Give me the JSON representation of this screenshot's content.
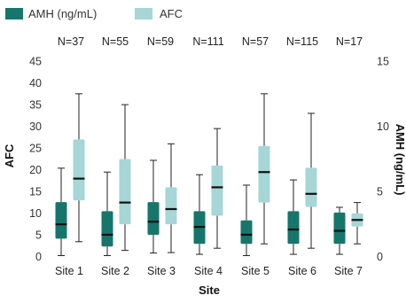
{
  "chart_data": {
    "type": "box",
    "xlabel": "Site",
    "ylabel_left": "AFC",
    "ylabel_right": "AMH (ng/mL)",
    "ylim_left": [
      0,
      45
    ],
    "yticks_left": [
      "0",
      "5",
      "10",
      "15",
      "20",
      "25",
      "30",
      "35",
      "40",
      "45"
    ],
    "ylim_right": [
      0,
      15
    ],
    "yticks_right": [
      "0",
      "5",
      "10",
      "15"
    ],
    "grid": false,
    "legend_position": "top-left",
    "categories": [
      "Site 1",
      "Site 2",
      "Site 3",
      "Site 4",
      "Site 5",
      "Site 6",
      "Site 7"
    ],
    "sample_sizes": [
      "N=37",
      "N=55",
      "N=59",
      "N=111",
      "N=57",
      "N=115",
      "N=17"
    ],
    "series": [
      {
        "name": "AMH (ng/mL)",
        "axis": "right",
        "color": "#17766b",
        "boxes": [
          {
            "min": 0.1,
            "q1": 1.4,
            "median": 2.5,
            "q3": 4.2,
            "max": 6.8
          },
          {
            "min": 0.1,
            "q1": 0.8,
            "median": 1.7,
            "q3": 3.5,
            "max": 6.5
          },
          {
            "min": 0.3,
            "q1": 1.7,
            "median": 2.7,
            "q3": 4.2,
            "max": 7.4
          },
          {
            "min": 0.2,
            "q1": 1.0,
            "median": 2.3,
            "q3": 3.5,
            "max": 6.3
          },
          {
            "min": 0.1,
            "q1": 1.0,
            "median": 1.7,
            "q3": 2.8,
            "max": 5.5
          },
          {
            "min": 0.2,
            "q1": 1.0,
            "median": 2.1,
            "q3": 3.5,
            "max": 5.9
          },
          {
            "min": 0.2,
            "q1": 1.0,
            "median": 2.0,
            "q3": 3.4,
            "max": 3.8
          }
        ]
      },
      {
        "name": "AFC",
        "axis": "left",
        "color": "#a6d6d6",
        "boxes": [
          {
            "min": 3.5,
            "q1": 13,
            "median": 18,
            "q3": 27,
            "max": 37.5
          },
          {
            "min": 1.5,
            "q1": 7.5,
            "median": 12.5,
            "q3": 22.5,
            "max": 35
          },
          {
            "min": 1,
            "q1": 7.5,
            "median": 11,
            "q3": 16,
            "max": 26
          },
          {
            "min": 2,
            "q1": 9.5,
            "median": 16,
            "q3": 21,
            "max": 29.5
          },
          {
            "min": 3,
            "q1": 12.5,
            "median": 19.5,
            "q3": 25.5,
            "max": 37.5
          },
          {
            "min": 2,
            "q1": 11.5,
            "median": 14.5,
            "q3": 20.5,
            "max": 33
          },
          {
            "min": 3,
            "q1": 7,
            "median": 8.5,
            "q3": 10,
            "max": 12.5
          }
        ]
      }
    ]
  }
}
